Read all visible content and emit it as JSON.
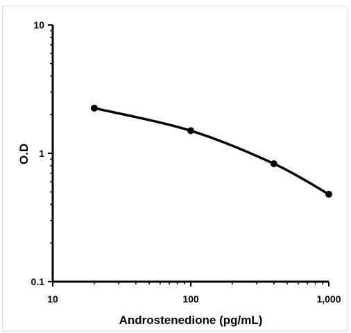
{
  "chart_data": {
    "type": "line",
    "title": "",
    "xlabel": "Androstenedione (pg/mL)",
    "ylabel": "O.D",
    "x_scale": "log",
    "y_scale": "log",
    "xlim": [
      10,
      1000
    ],
    "ylim": [
      0.1,
      10
    ],
    "x_tick_labels": [
      "10",
      "100",
      "1,000"
    ],
    "y_tick_labels": [
      "10",
      "1",
      "0.1"
    ],
    "grid": false,
    "legend": "none",
    "series": [
      {
        "x": [
          20,
          100,
          400,
          1000
        ],
        "y": [
          2.25,
          1.5,
          0.83,
          0.48
        ],
        "color": "#000000",
        "marker": "circle"
      }
    ]
  }
}
